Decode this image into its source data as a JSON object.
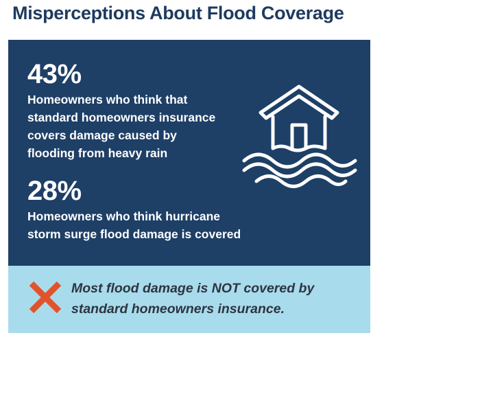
{
  "title": "Misperceptions About Flood Coverage",
  "stats": [
    {
      "value": "43%",
      "text": "Homeowners who think that\nstandard homeowners insurance\ncovers damage caused by\nflooding from heavy rain"
    },
    {
      "value": "28%",
      "text": "Homeowners who think hurricane\nstorm surge flood damage is covered"
    }
  ],
  "icons": {
    "house": "flooded-house-icon",
    "cross": "x-mark-icon"
  },
  "note": "Most flood damage is NOT covered by\nstandard homeowners insurance.",
  "colors": {
    "title": "#1e3a5f",
    "dark_panel": "#1e3f66",
    "light_panel": "#a8dbeb",
    "cross": "#e2532a",
    "note_text": "#2d3440"
  }
}
